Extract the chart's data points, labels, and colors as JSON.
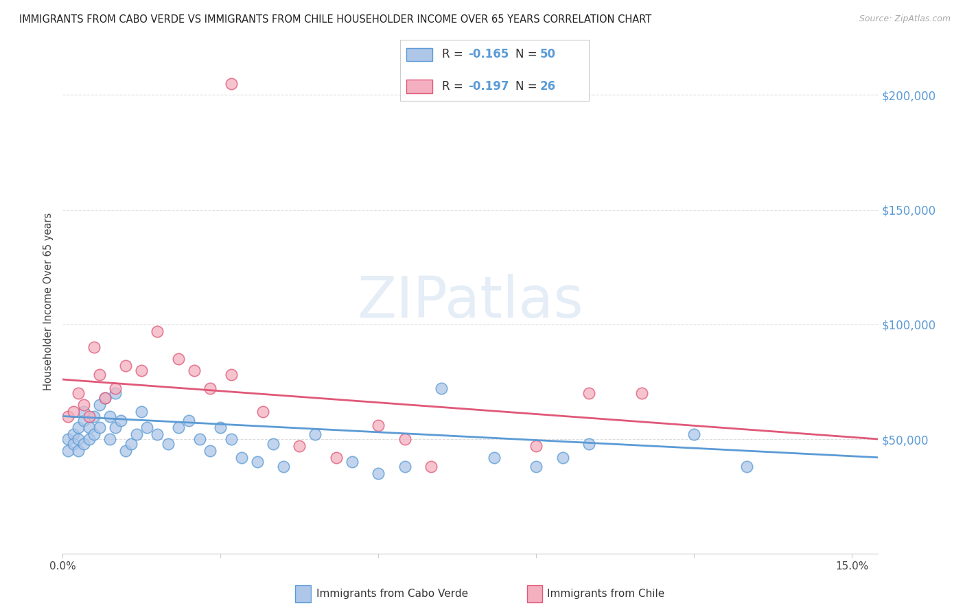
{
  "title": "IMMIGRANTS FROM CABO VERDE VS IMMIGRANTS FROM CHILE HOUSEHOLDER INCOME OVER 65 YEARS CORRELATION CHART",
  "source": "Source: ZipAtlas.com",
  "ylabel": "Householder Income Over 65 years",
  "xlim": [
    0.0,
    0.155
  ],
  "ylim": [
    0,
    220000
  ],
  "yticks": [
    0,
    50000,
    100000,
    150000,
    200000
  ],
  "ytick_labels": [
    "",
    "$50,000",
    "$100,000",
    "$150,000",
    "$200,000"
  ],
  "xtick_pos": [
    0.0,
    0.03,
    0.06,
    0.09,
    0.12,
    0.15
  ],
  "xtick_labels": [
    "0.0%",
    "",
    "",
    "",
    "",
    "15.0%"
  ],
  "cabo_verde_color": "#aec6e8",
  "chile_color": "#f4b0c0",
  "cabo_verde_edge_color": "#5b9bd5",
  "chile_edge_color": "#e05878",
  "cabo_verde_line_color": "#5b9bd5",
  "chile_line_color": "#e05878",
  "cabo_verde_R": -0.165,
  "cabo_verde_N": 50,
  "chile_R": -0.197,
  "chile_N": 26,
  "cabo_verde_x": [
    0.001,
    0.001,
    0.002,
    0.002,
    0.003,
    0.003,
    0.003,
    0.004,
    0.004,
    0.004,
    0.005,
    0.005,
    0.006,
    0.006,
    0.007,
    0.007,
    0.008,
    0.009,
    0.009,
    0.01,
    0.01,
    0.011,
    0.012,
    0.013,
    0.014,
    0.015,
    0.016,
    0.018,
    0.02,
    0.022,
    0.024,
    0.026,
    0.028,
    0.03,
    0.032,
    0.034,
    0.037,
    0.04,
    0.042,
    0.048,
    0.055,
    0.06,
    0.065,
    0.072,
    0.082,
    0.09,
    0.095,
    0.1,
    0.12,
    0.13
  ],
  "cabo_verde_y": [
    50000,
    45000,
    52000,
    48000,
    50000,
    55000,
    45000,
    58000,
    62000,
    48000,
    55000,
    50000,
    60000,
    52000,
    65000,
    55000,
    68000,
    60000,
    50000,
    70000,
    55000,
    58000,
    45000,
    48000,
    52000,
    62000,
    55000,
    52000,
    48000,
    55000,
    58000,
    50000,
    45000,
    55000,
    50000,
    42000,
    40000,
    48000,
    38000,
    52000,
    40000,
    35000,
    38000,
    72000,
    42000,
    38000,
    42000,
    48000,
    52000,
    38000
  ],
  "chile_x": [
    0.001,
    0.002,
    0.003,
    0.004,
    0.005,
    0.006,
    0.007,
    0.008,
    0.01,
    0.012,
    0.015,
    0.018,
    0.022,
    0.025,
    0.028,
    0.032,
    0.038,
    0.045,
    0.052,
    0.06,
    0.065,
    0.07,
    0.09,
    0.1,
    0.11,
    0.032
  ],
  "chile_y": [
    60000,
    62000,
    70000,
    65000,
    60000,
    90000,
    78000,
    68000,
    72000,
    82000,
    80000,
    97000,
    85000,
    80000,
    72000,
    78000,
    62000,
    47000,
    42000,
    56000,
    50000,
    38000,
    47000,
    70000,
    70000,
    205000
  ],
  "cabo_verde_trend": [
    0.0,
    60000,
    0.155,
    42000
  ],
  "chile_trend": [
    0.0,
    76000,
    0.155,
    50000
  ],
  "background_color": "#ffffff",
  "grid_color": "#dddddd",
  "title_fontsize": 10.5,
  "ytick_color": "#5b9bd5",
  "marker_size": 140,
  "legend_text_color": "#333333",
  "legend_value_color": "#5b9bd5",
  "watermark_color": "#d0dff0"
}
